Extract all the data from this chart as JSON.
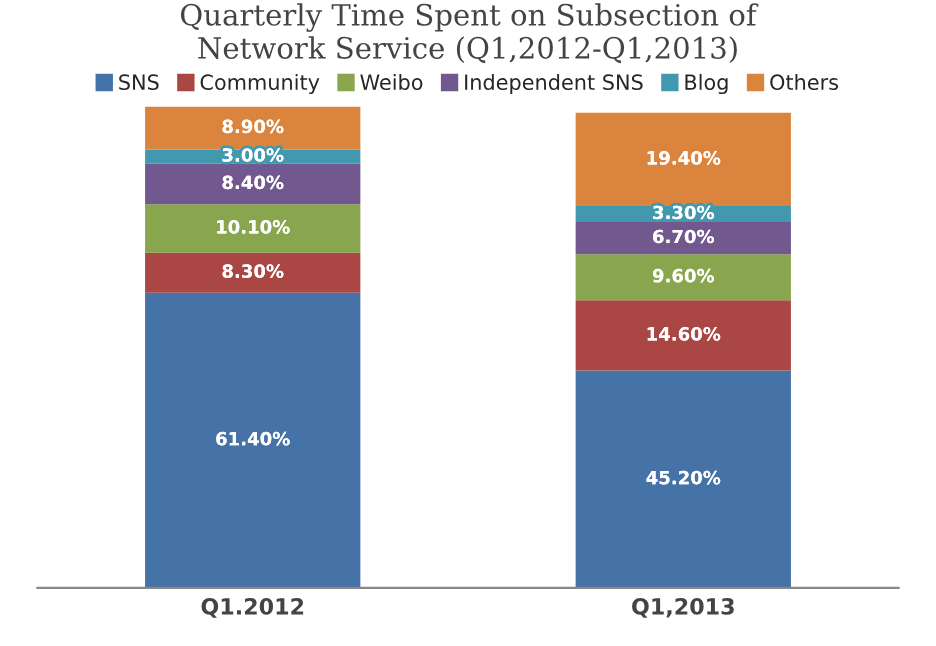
{
  "chart_data": {
    "type": "bar",
    "title": "Quarterly Time Spent on Subsection of\nNetwork Service (Q1,2012-Q1,2013)",
    "categories": [
      "Q1.2012",
      "Q1,2013"
    ],
    "stacked": true,
    "legend": "top",
    "grid": false,
    "tick_labels": "x",
    "series": [
      {
        "name": "SNS",
        "color": "#4572a7",
        "values": [
          61.4,
          45.2
        ],
        "value_labels": [
          "61.40%",
          "45.20%"
        ]
      },
      {
        "name": "Community",
        "color": "#aa4643",
        "values": [
          8.3,
          14.6
        ],
        "value_labels": [
          "8.30%",
          "14.60%"
        ]
      },
      {
        "name": "Weibo",
        "color": "#89a54e",
        "values": [
          10.1,
          9.6
        ],
        "value_labels": [
          "10.10%",
          "9.60%"
        ]
      },
      {
        "name": "Independent SNS",
        "color": "#71588f",
        "values": [
          8.4,
          6.7
        ],
        "value_labels": [
          "8.40%",
          "6.70%"
        ]
      },
      {
        "name": "Blog",
        "color": "#4198af",
        "values": [
          3.0,
          3.3
        ],
        "value_labels": [
          "3.00%",
          "3.30%"
        ]
      },
      {
        "name": "Others",
        "color": "#db843d",
        "values": [
          8.9,
          19.4
        ],
        "value_labels": [
          "8.90%",
          "19.40%"
        ]
      }
    ]
  }
}
